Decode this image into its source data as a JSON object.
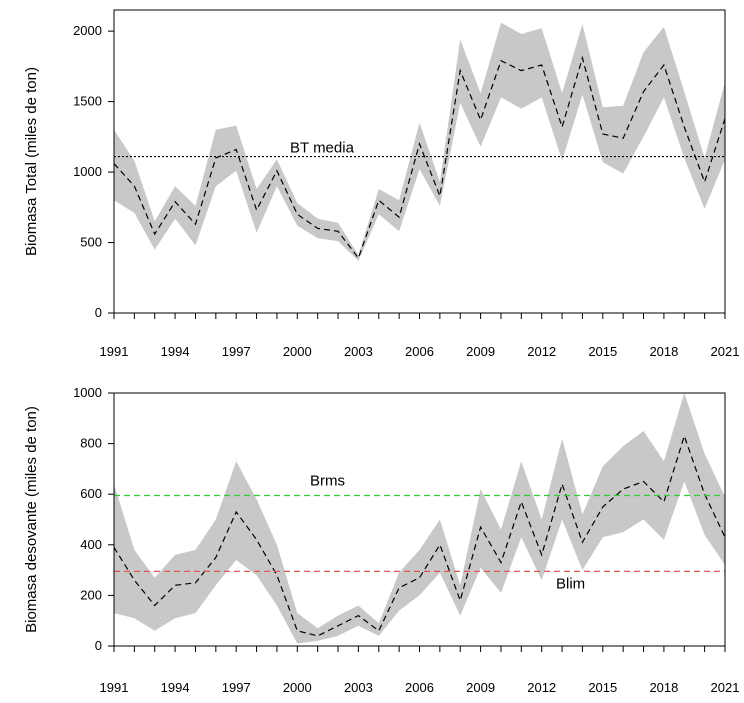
{
  "chart_data": [
    {
      "type": "line",
      "ylabel": "Biomasa Total (miles de ton)",
      "ylim": [
        0,
        2150
      ],
      "xlim": [
        1991,
        2021
      ],
      "x_tick_labels": [
        "1991",
        "1994",
        "1997",
        "2000",
        "2003",
        "2006",
        "2009",
        "2012",
        "2015",
        "2018",
        "2021"
      ],
      "y_tick_labels": [
        "0",
        "500",
        "1000",
        "1500",
        "2000"
      ],
      "x": [
        1991,
        1992,
        1993,
        1994,
        1995,
        1996,
        1997,
        1998,
        1999,
        2000,
        2001,
        2002,
        2003,
        2004,
        2005,
        2006,
        2007,
        2008,
        2009,
        2010,
        2011,
        2012,
        2013,
        2014,
        2015,
        2016,
        2017,
        2018,
        2019,
        2020,
        2021
      ],
      "series": [
        {
          "values": [
            1060,
            900,
            560,
            790,
            630,
            1100,
            1160,
            730,
            1010,
            700,
            600,
            580,
            390,
            800,
            680,
            1200,
            830,
            1720,
            1370,
            1790,
            1720,
            1760,
            1320,
            1810,
            1270,
            1240,
            1570,
            1760,
            1320,
            930,
            1380
          ],
          "lower": [
            800,
            710,
            450,
            670,
            480,
            900,
            1010,
            570,
            900,
            620,
            530,
            510,
            370,
            700,
            580,
            1020,
            760,
            1490,
            1180,
            1530,
            1450,
            1530,
            1080,
            1550,
            1070,
            990,
            1250,
            1530,
            1100,
            740,
            1090
          ],
          "upper": [
            1300,
            1080,
            650,
            900,
            760,
            1300,
            1330,
            880,
            1090,
            780,
            670,
            640,
            410,
            880,
            800,
            1350,
            930,
            1940,
            1560,
            2060,
            1980,
            2020,
            1560,
            2050,
            1460,
            1470,
            1850,
            2030,
            1570,
            1100,
            1640
          ]
        }
      ],
      "reference_lines": [
        {
          "label": "BT media",
          "value": 1110,
          "style": "dotted",
          "color": "#000000"
        }
      ]
    },
    {
      "type": "line",
      "ylabel": "Biomasa desovante (miles de ton)",
      "ylim": [
        0,
        1000
      ],
      "xlim": [
        1991,
        2021
      ],
      "x_tick_labels": [
        "1991",
        "1994",
        "1997",
        "2000",
        "2003",
        "2006",
        "2009",
        "2012",
        "2015",
        "2018",
        "2021"
      ],
      "y_tick_labels": [
        "0",
        "200",
        "400",
        "600",
        "800",
        "1000"
      ],
      "x": [
        1991,
        1992,
        1993,
        1994,
        1995,
        1996,
        1997,
        1998,
        1999,
        2000,
        2001,
        2002,
        2003,
        2004,
        2005,
        2006,
        2007,
        2008,
        2009,
        2010,
        2011,
        2012,
        2013,
        2014,
        2015,
        2016,
        2017,
        2018,
        2019,
        2020,
        2021
      ],
      "series": [
        {
          "values": [
            390,
            260,
            160,
            240,
            250,
            350,
            530,
            420,
            280,
            60,
            40,
            80,
            120,
            60,
            230,
            270,
            400,
            180,
            470,
            330,
            570,
            360,
            640,
            410,
            550,
            620,
            650,
            570,
            830,
            600,
            430
          ],
          "lower": [
            130,
            110,
            60,
            110,
            130,
            240,
            340,
            280,
            160,
            10,
            20,
            40,
            80,
            40,
            140,
            200,
            290,
            120,
            310,
            210,
            430,
            260,
            500,
            300,
            430,
            450,
            500,
            420,
            650,
            440,
            320
          ],
          "upper": [
            640,
            380,
            270,
            360,
            380,
            500,
            730,
            580,
            400,
            130,
            70,
            120,
            160,
            90,
            290,
            380,
            500,
            240,
            620,
            460,
            730,
            500,
            820,
            520,
            710,
            790,
            850,
            730,
            1000,
            760,
            590
          ]
        }
      ],
      "reference_lines": [
        {
          "label": "Brms",
          "value": 595,
          "style": "dashed",
          "color": "#33cc33"
        },
        {
          "label": "Blim",
          "value": 295,
          "style": "dashed",
          "color": "#e05555"
        }
      ]
    }
  ],
  "colors": {
    "band": "#c8c8c8",
    "line": "#000000"
  }
}
